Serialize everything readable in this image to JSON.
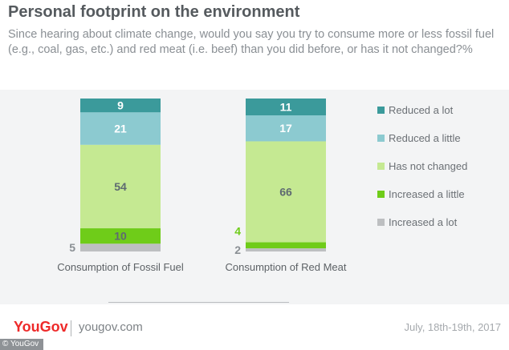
{
  "title": "Personal footprint on the environment",
  "subtitle": "Since hearing about climate change, would you say you try to consume more or less fossil fuel (e.g., coal, gas, etc.) and red meat (i.e. beef) than you did before, or has it not changed?%",
  "footer": {
    "logo": "YouGov",
    "site": "yougov.com",
    "date": "July, 18th-19th, 2017",
    "credit": "© YouGov"
  },
  "colors": {
    "reduced_a_lot": "#3b9a9b",
    "reduced_a_little": "#8ccad0",
    "has_not_changed": "#c5e992",
    "increased_a_little": "#6fcc19",
    "increased_a_lot": "#bdbfc1",
    "label_dark": "#5e6a71",
    "label_green": "#6fcc19"
  },
  "chart_data": {
    "type": "bar",
    "stacked": true,
    "categories": [
      "Consumption of Fossil Fuel",
      "Consumption of Red Meat"
    ],
    "series": [
      {
        "name": "Reduced a lot",
        "values": [
          9,
          11
        ]
      },
      {
        "name": "Reduced a little",
        "values": [
          21,
          17
        ]
      },
      {
        "name": "Has not changed",
        "values": [
          54,
          66
        ]
      },
      {
        "name": "Increased a little",
        "values": [
          10,
          4
        ]
      },
      {
        "name": "Increased a lot",
        "values": [
          5,
          2
        ]
      }
    ],
    "legend_position": "right",
    "grid": false
  }
}
